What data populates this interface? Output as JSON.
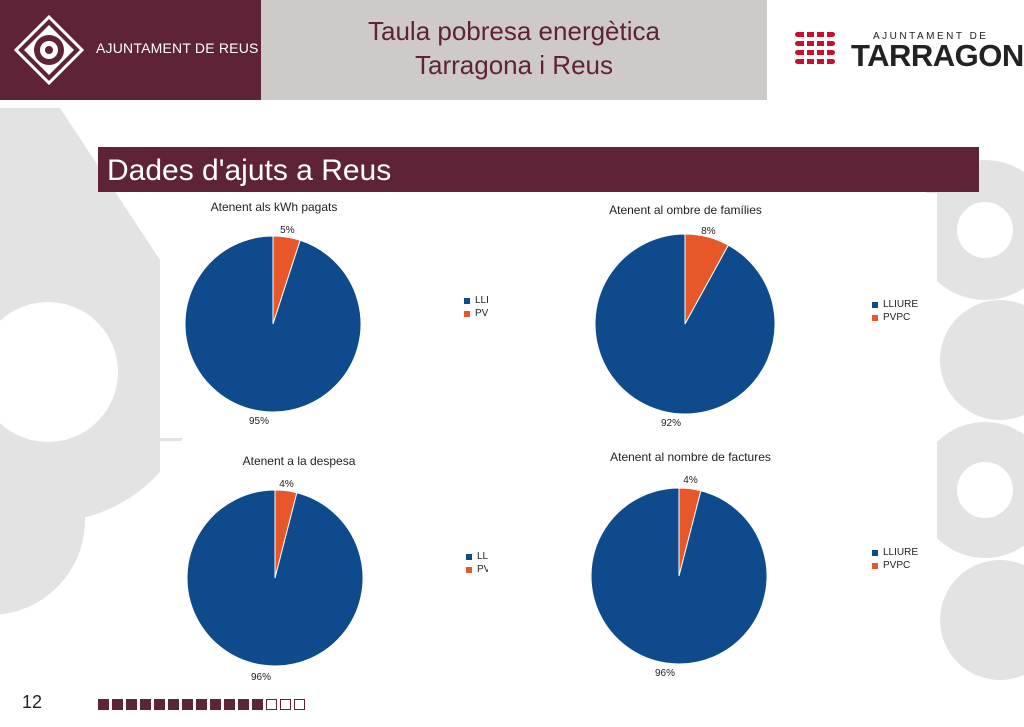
{
  "header": {
    "left_name": "AJUNTAMENT DE REUS",
    "title_line1": "Taula pobresa energètica",
    "title_line2": "Tarragona i Reus",
    "right_small": "AJUNTAMENT DE",
    "right_big": "TARRAGONA"
  },
  "section": {
    "title": "Dades d'ajuts a Reus"
  },
  "colors": {
    "brand": "#5f2338",
    "header_gray": "#cdcac7",
    "lliure": "#0e4a8c",
    "pvpc": "#e8572a"
  },
  "chart_data": [
    {
      "type": "pie",
      "title": "Atenent als kWh pagats",
      "categories": [
        "LLIURE",
        "PVPC"
      ],
      "values": [
        95,
        5
      ],
      "labels": [
        "95%",
        "5%"
      ],
      "legend": "right"
    },
    {
      "type": "pie",
      "title": "Atenent al ombre de famílies",
      "categories": [
        "LLIURE",
        "PVPC"
      ],
      "values": [
        92,
        8
      ],
      "labels": [
        "92%",
        "8%"
      ],
      "legend": "right"
    },
    {
      "type": "pie",
      "title": "Atenent a la despesa",
      "categories": [
        "LLIURE",
        "PVPC"
      ],
      "values": [
        96,
        4
      ],
      "labels": [
        "96%",
        "4%"
      ],
      "legend": "right"
    },
    {
      "type": "pie",
      "title": "Atenent al nombre de factures",
      "categories": [
        "LLIURE",
        "PVPC"
      ],
      "values": [
        96,
        4
      ],
      "labels": [
        "96%",
        "4%"
      ],
      "legend": "right"
    }
  ],
  "footer": {
    "page_number": "12",
    "progress_filled": 12,
    "progress_total": 15
  }
}
